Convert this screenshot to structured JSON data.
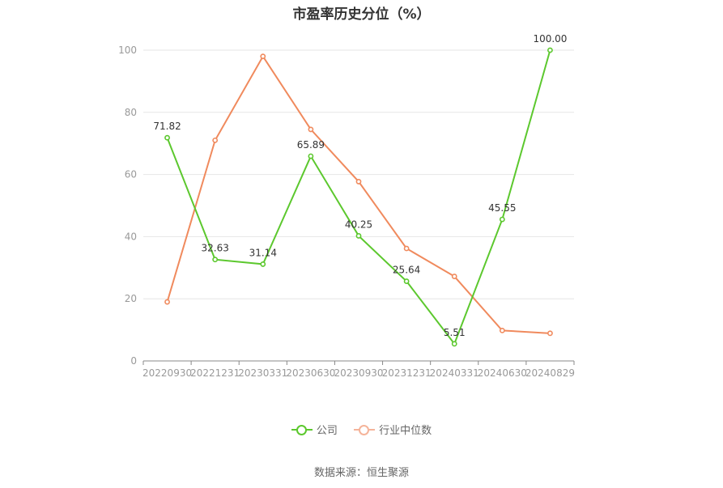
{
  "chart_data": {
    "type": "line",
    "title": "市盈率历史分位（%）",
    "categories": [
      "20220930",
      "20221231",
      "20230331",
      "20230630",
      "20230930",
      "20231231",
      "20240331",
      "20240630",
      "20240829"
    ],
    "ylim": [
      0,
      100
    ],
    "yticks": [
      0,
      20,
      40,
      60,
      80,
      100
    ],
    "grid": true,
    "legend_position": "bottom",
    "series": [
      {
        "name": "公司",
        "color": "#5cc82e",
        "values": [
          71.82,
          32.63,
          31.14,
          65.89,
          40.25,
          25.64,
          5.51,
          45.55,
          100.0
        ],
        "labels": [
          "71.82",
          "32.63",
          "31.14",
          "65.89",
          "40.25",
          "25.64",
          "5.51",
          "45.55",
          "100.00"
        ]
      },
      {
        "name": "行业中位数",
        "color": "#f08a5d",
        "values": [
          19.0,
          71.0,
          98.0,
          74.5,
          57.7,
          36.2,
          27.2,
          9.8,
          8.9
        ]
      }
    ]
  },
  "source": "数据来源：恒生聚源",
  "legend_colors": {
    "company_legend": "#5cc82e",
    "industry_legend": "#f5b49a"
  }
}
